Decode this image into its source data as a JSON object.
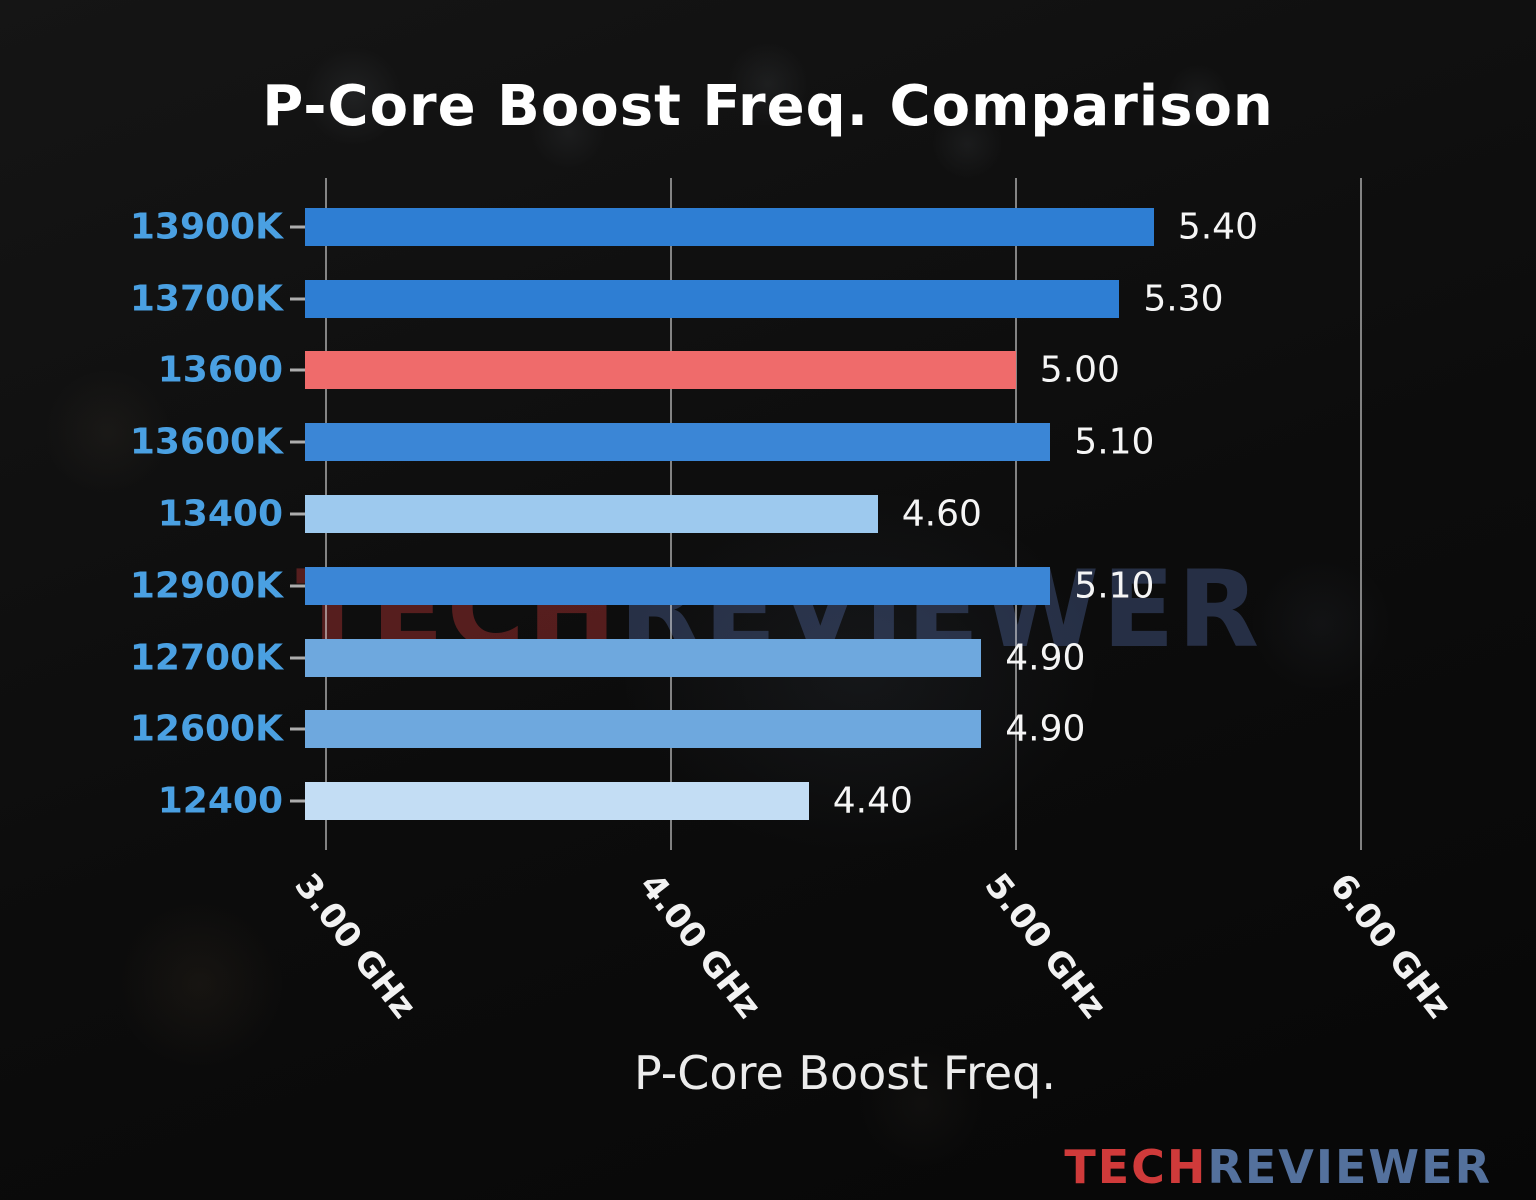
{
  "title": "P-Core Boost Freq. Comparison",
  "xlabel": "P-Core Boost Freq.",
  "watermark": {
    "tech": "TECH",
    "reviewer": "REVIEWER"
  },
  "brand": {
    "tech": "TECH",
    "reviewer": "REVIEWER",
    "tech_color": "#cf3a3a",
    "reviewer_color": "#54719d"
  },
  "chart_data": {
    "type": "bar",
    "orientation": "horizontal",
    "title": "P-Core Boost Freq. Comparison",
    "xlabel": "P-Core Boost Freq.",
    "unit": "GHz",
    "categories": [
      "13900K",
      "13700K",
      "13600",
      "13600K",
      "13400",
      "12900K",
      "12700K",
      "12600K",
      "12400"
    ],
    "values": [
      5.4,
      5.3,
      5.0,
      5.1,
      4.6,
      5.1,
      4.9,
      4.9,
      4.4
    ],
    "value_labels": [
      "5.40",
      "5.30",
      "5.00",
      "5.10",
      "4.60",
      "5.10",
      "4.90",
      "4.90",
      "4.40"
    ],
    "bar_colors": [
      "#2e7ed3",
      "#2e7ed3",
      "#ef6b6b",
      "#3b86d6",
      "#9dc9ee",
      "#3b86d6",
      "#6ea8de",
      "#6ea8de",
      "#c3ddf4"
    ],
    "highlight_index": 2,
    "highlight_category": "13600",
    "category_label_color": "#4aa0e2",
    "xticks": [
      3,
      4,
      5,
      6
    ],
    "xtick_labels": [
      "3.00 GHz",
      "4.00 GHz",
      "5.00 GHz",
      "6.00 GHz"
    ],
    "xlim": [
      2.94,
      6.07
    ],
    "grid": true,
    "legend": false
  }
}
